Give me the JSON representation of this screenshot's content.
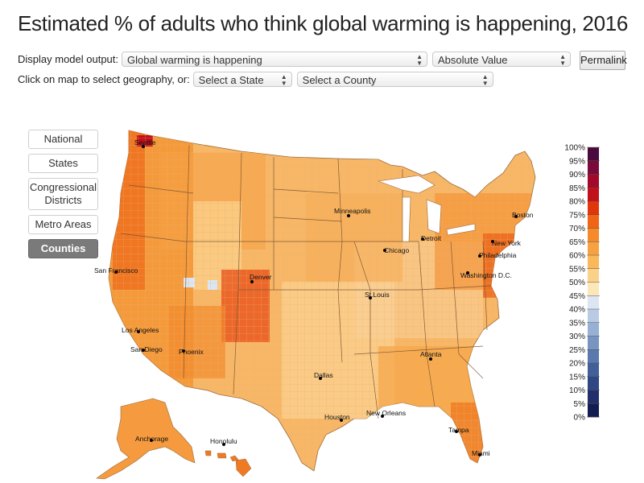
{
  "title": "Estimated % of adults who think global warming is happening, 2016",
  "controls": {
    "output_label": "Display model output:",
    "output_value": "Global warming is happening",
    "value_type": "Absolute Value",
    "geo_label": "Click on map to select geography, or:",
    "state_select": "Select a State",
    "county_select": "Select a County",
    "permalink": "Permalink"
  },
  "geography_buttons": [
    {
      "label": "National",
      "active": false
    },
    {
      "label": "States",
      "active": false
    },
    {
      "label": "Congressional Districts",
      "active": false
    },
    {
      "label": "Metro Areas",
      "active": false
    },
    {
      "label": "Counties",
      "active": true
    }
  ],
  "cities": [
    "Seattle",
    "Minneapolis",
    "Boston",
    "Detroit",
    "New York",
    "Chicago",
    "Philadelphia",
    "Washington D.C.",
    "San Francisco",
    "Denver",
    "St.Louis",
    "Los Angeles",
    "San Diego",
    "Phoenix",
    "Atlanta",
    "Dallas",
    "Houston",
    "New Orleans",
    "Tampa",
    "Miami",
    "Anchorage",
    "Honolulu"
  ],
  "legend": {
    "labels": [
      "100%",
      "95%",
      "90%",
      "85%",
      "80%",
      "75%",
      "70%",
      "65%",
      "60%",
      "55%",
      "50%",
      "45%",
      "40%",
      "35%",
      "30%",
      "25%",
      "20%",
      "15%",
      "10%",
      "5%",
      "0%"
    ],
    "colors": [
      "#4a0a3d",
      "#7a0a3a",
      "#a10a2a",
      "#c2101a",
      "#e0360c",
      "#f06416",
      "#f48a2a",
      "#f7a242",
      "#f9b85a",
      "#fbd088",
      "#fde7b8",
      "#dce6f2",
      "#b9cbe3",
      "#97b0d3",
      "#7894c0",
      "#5a79ad",
      "#425f98",
      "#2f4782",
      "#21306a",
      "#131d52"
    ]
  }
}
